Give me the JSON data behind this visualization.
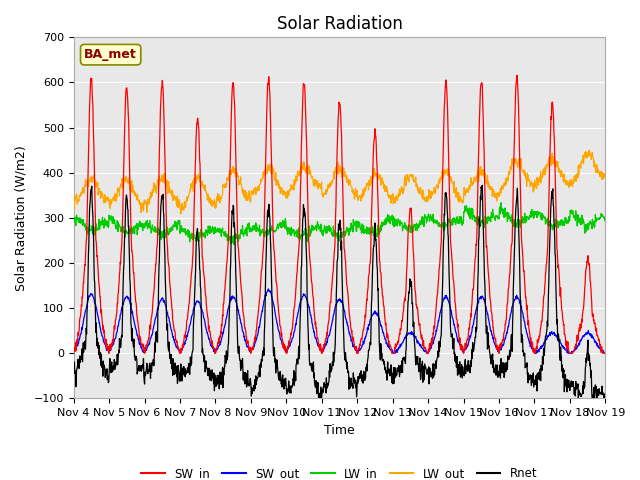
{
  "title": "Solar Radiation",
  "ylabel": "Solar Radiation (W/m2)",
  "xlabel": "Time",
  "site_label": "BA_met",
  "ylim": [
    -100,
    700
  ],
  "xlim": [
    0,
    15
  ],
  "x_tick_labels": [
    "Nov 4",
    "Nov 5",
    "Nov 6",
    "Nov 7",
    "Nov 8",
    "Nov 9",
    "Nov 10",
    "Nov 11",
    "Nov 12",
    "Nov 13",
    "Nov 14",
    "Nov 15",
    "Nov 16",
    "Nov 17",
    "Nov 18",
    "Nov 19"
  ],
  "colors": {
    "SW_in": "#ff0000",
    "SW_out": "#0000ff",
    "LW_in": "#00cc00",
    "LW_out": "#ffa500",
    "Rnet": "#000000"
  },
  "background_color": "#e8e8e8",
  "title_fontsize": 12,
  "axis_label_fontsize": 9,
  "tick_fontsize": 8,
  "linewidth": 0.9
}
